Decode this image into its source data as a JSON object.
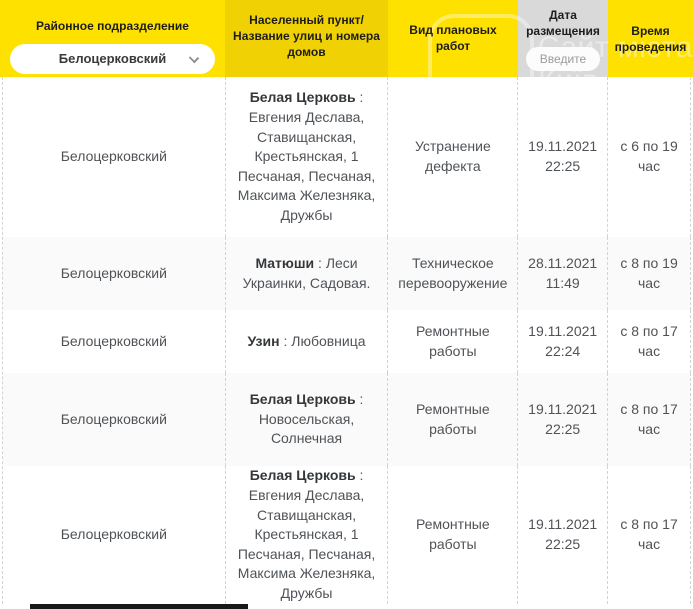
{
  "colors": {
    "header_yellow": "#ffe100",
    "header_mustard": "#efd104",
    "header_grey": "#d9d9d9",
    "row_alt_background": "#fafafa",
    "body_text": "#4f5357",
    "watermark_white": "rgba(255,255,255,0.42)"
  },
  "separator": " : ",
  "header": {
    "district": {
      "label": "Районное подразделение",
      "selected": "Белоцерковский"
    },
    "location": {
      "label": "Населенный пункт/\nНазвание улиц и номера\nдомов"
    },
    "work": {
      "label": "Вид плановых работ"
    },
    "date": {
      "label": "Дата\nразмещения",
      "filter_button": "Введите"
    },
    "time": {
      "label": "Время\nпроведения"
    }
  },
  "watermark": {
    "number": "44",
    "line1": "Сайт міста",
    "line2": "Київ"
  },
  "rows": [
    {
      "division": "Белоцерковский",
      "settlement": "Белая Церковь",
      "streets": "Евгения Деслава, Ставищанская, Крестьянская, 1 Песчаная, Песчаная, Максима Железняка, Дружбы",
      "work": "Устранение дефекта",
      "date": "19.11.2021",
      "time_posted": "22:25",
      "hours": "с 6 по 19 час"
    },
    {
      "division": "Белоцерковский",
      "settlement": "Матюши",
      "streets": "Леси Украинки, Садовая.",
      "work": "Техническое перевооружение",
      "date": "28.11.2021",
      "time_posted": "11:49",
      "hours": "с 8 по 19 час"
    },
    {
      "division": "Белоцерковский",
      "settlement": "Узин",
      "streets": "Любовница",
      "work": "Ремонтные работы",
      "date": "19.11.2021",
      "time_posted": "22:24",
      "hours": "с 8 по 17 час"
    },
    {
      "division": "Белоцерковский",
      "settlement": "Белая Церковь",
      "streets": "Новосельская, Солнечная",
      "work": "Ремонтные работы",
      "date": "19.11.2021",
      "time_posted": "22:25",
      "hours": "с 8 по 17 час"
    },
    {
      "division": "Белоцерковский",
      "settlement": "Белая Церковь",
      "streets": "Евгения Деслава, Ставищанская, Крестьянская, 1 Песчаная, Песчаная, Максима Железняка, Дружбы",
      "work": "Ремонтные работы",
      "date": "19.11.2021",
      "time_posted": "22:25",
      "hours": "с 8 по 17 час"
    }
  ]
}
